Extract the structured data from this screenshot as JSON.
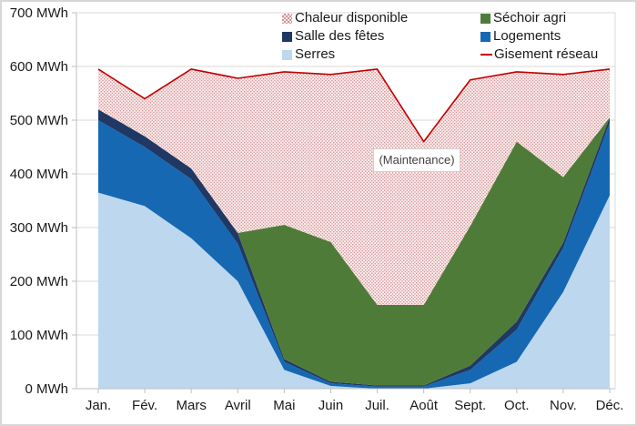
{
  "legend": {
    "items": [
      {
        "label": "Chaleur disponible",
        "swatch": "pink-hatch",
        "color": "#e9caca"
      },
      {
        "label": "Séchoir agri",
        "swatch": "solid",
        "color": "#4e7c38"
      },
      {
        "label": "Salle des fêtes",
        "swatch": "solid",
        "color": "#1f3864"
      },
      {
        "label": "Logements",
        "swatch": "solid",
        "color": "#1668b3"
      },
      {
        "label": "Serres",
        "swatch": "solid",
        "color": "#bdd7ee"
      },
      {
        "label": "Gisement réseau",
        "swatch": "line",
        "color": "#c00000"
      }
    ]
  },
  "annotation": {
    "text": "(Maintenance)"
  },
  "chart_data": {
    "type": "area",
    "stacked": true,
    "unit": "MWh",
    "categories": [
      "Jan.",
      "Fév.",
      "Mars",
      "Avril",
      "Mai",
      "Juin",
      "Juil.",
      "Août",
      "Sept.",
      "Oct.",
      "Nov.",
      "Déc."
    ],
    "y_tick_labels": [
      "0 MWh",
      "100 MWh",
      "200 MWh",
      "300 MWh",
      "400 MWh",
      "500 MWh",
      "600 MWh",
      "700 MWh"
    ],
    "ylim": [
      0,
      700
    ],
    "grid": "horizontal",
    "legend_position": "top",
    "series": [
      {
        "name": "Serres",
        "color": "#bdd7ee",
        "values": [
          365,
          340,
          280,
          200,
          35,
          5,
          0,
          0,
          10,
          50,
          180,
          360
        ]
      },
      {
        "name": "Logements",
        "color": "#1668b3",
        "values": [
          135,
          110,
          110,
          70,
          15,
          5,
          4,
          4,
          25,
          60,
          82,
          135
        ]
      },
      {
        "name": "Salle des fêtes",
        "color": "#1f3864",
        "values": [
          20,
          20,
          20,
          20,
          5,
          3,
          2,
          2,
          8,
          15,
          10,
          10
        ]
      },
      {
        "name": "Séchoir agri",
        "color": "#4e7c38",
        "values": [
          0,
          0,
          0,
          0,
          250,
          260,
          150,
          150,
          260,
          335,
          122,
          0
        ]
      },
      {
        "name": "Chaleur disponible",
        "color": "pink-hatch",
        "values": [
          75,
          70,
          185,
          288,
          285,
          312,
          439,
          304,
          272,
          130,
          191,
          90
        ]
      }
    ],
    "line_series": {
      "name": "Gisement réseau",
      "color": "#c00000",
      "values": [
        595,
        540,
        595,
        578,
        590,
        585,
        595,
        460,
        575,
        590,
        585,
        595
      ]
    }
  }
}
